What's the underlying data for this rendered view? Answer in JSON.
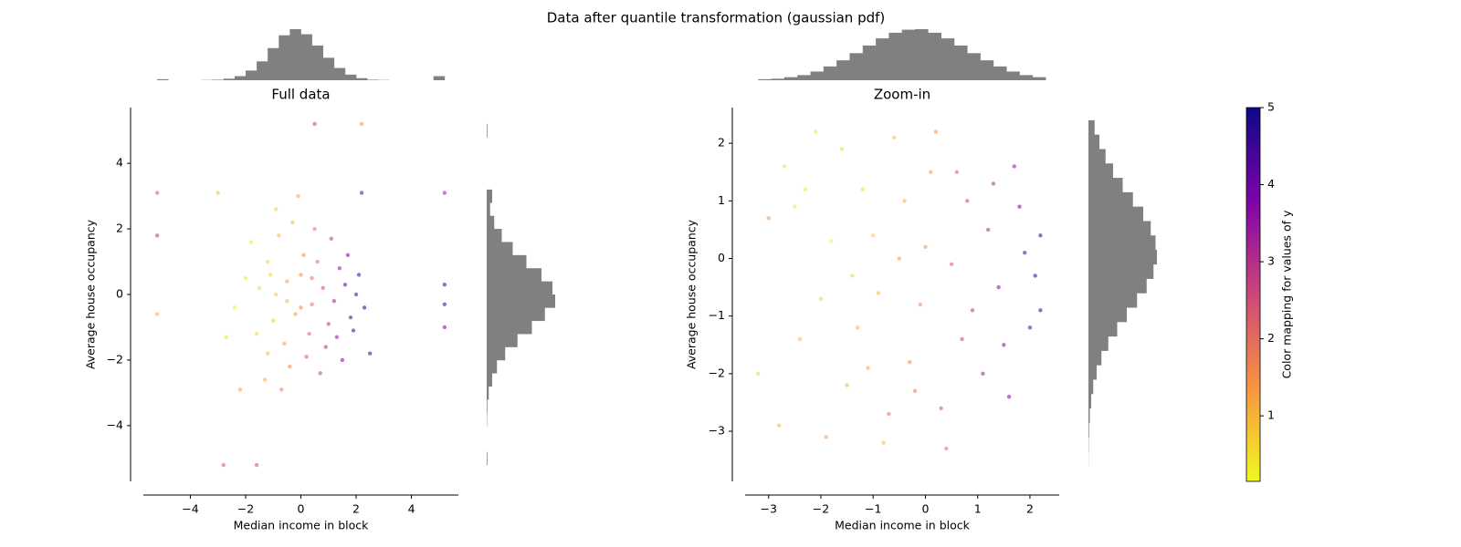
{
  "title": "Data after quantile transformation (gaussian pdf)",
  "chart_data": [
    {
      "type": "scatter",
      "title": "Full data",
      "xlabel": "Median income in block",
      "ylabel": "Average house occupancy",
      "xlim": [
        -5.7,
        5.7
      ],
      "ylim": [
        -5.7,
        5.7
      ],
      "xticks": [
        {
          "value": -4,
          "label": "−4"
        },
        {
          "value": -2,
          "label": "−2"
        },
        0,
        2,
        4
      ],
      "yticks": [
        {
          "value": -4,
          "label": "−4"
        },
        {
          "value": -2,
          "label": "−2"
        },
        0,
        2,
        4
      ],
      "x": [
        -1.2,
        -0.8,
        -0.5,
        -0.2,
        0.1,
        0.4,
        0.8,
        1.2,
        1.6,
        2.0,
        2.3,
        -1.5,
        -1.0,
        -0.6,
        -0.3,
        0.0,
        0.3,
        0.6,
        1.0,
        1.4,
        1.8,
        -2.0,
        -1.6,
        -1.2,
        -0.9,
        -0.4,
        0.2,
        0.5,
        0.9,
        1.3,
        1.7,
        2.1,
        -2.4,
        -1.8,
        -1.3,
        -0.7,
        -0.1,
        0.7,
        1.1,
        1.5,
        -0.5,
        -0.9,
        0.0,
        0.4,
        -1.1,
        1.9,
        2.5,
        -2.7,
        -3.0,
        -5.2,
        -5.2,
        -5.2,
        5.2,
        5.2,
        5.2,
        5.2,
        0.5,
        2.2,
        -2.8,
        -1.6,
        2.2,
        -2.2
      ],
      "y": [
        1.0,
        1.8,
        0.4,
        -0.6,
        1.2,
        -0.3,
        0.2,
        -0.2,
        0.3,
        0.0,
        -0.4,
        0.2,
        -0.8,
        -1.5,
        2.2,
        0.6,
        -1.2,
        1.0,
        -0.9,
        0.8,
        -0.7,
        0.5,
        -1.2,
        -1.8,
        2.6,
        -2.2,
        -1.9,
        2.0,
        -1.6,
        -1.3,
        1.2,
        0.6,
        -0.4,
        1.6,
        -2.6,
        -2.9,
        3.0,
        -2.4,
        1.7,
        -2.0,
        -0.2,
        0.0,
        -0.4,
        0.5,
        0.6,
        -1.1,
        -1.8,
        -1.3,
        3.1,
        3.1,
        1.8,
        -0.6,
        3.1,
        0.3,
        -0.3,
        -1.0,
        5.2,
        5.2,
        -5.2,
        -5.2,
        3.1,
        -2.9
      ],
      "c": [
        0.6,
        0.9,
        1.2,
        1.4,
        1.6,
        2.0,
        2.6,
        3.3,
        4.1,
        4.6,
        4.9,
        0.5,
        0.8,
        1.3,
        1.0,
        1.5,
        2.2,
        2.1,
        3.0,
        3.6,
        4.3,
        0.4,
        0.6,
        0.9,
        0.7,
        1.6,
        2.4,
        1.9,
        3.1,
        3.5,
        3.9,
        4.7,
        0.3,
        0.4,
        1.1,
        1.8,
        1.2,
        2.8,
        2.9,
        3.8,
        1.1,
        0.8,
        1.7,
        2.0,
        0.6,
        4.5,
        4.8,
        0.5,
        0.9,
        2.5,
        3.0,
        1.0,
        3.4,
        4.8,
        4.9,
        4.0,
        2.8,
        1.5,
        2.4,
        2.6,
        4.2,
        1.2
      ]
    },
    {
      "type": "histogram",
      "orientation": "vertical",
      "color": "#808080",
      "ylim": [
        0,
        100
      ],
      "bins": [
        -5.2,
        -4.8,
        -4.4,
        -4.0,
        -3.6,
        -3.2,
        -2.8,
        -2.4,
        -2.0,
        -1.6,
        -1.2,
        -0.8,
        -0.4,
        0.0,
        0.4,
        0.8,
        1.2,
        1.6,
        2.0,
        2.4,
        2.8,
        3.2,
        3.6,
        4.0,
        4.4,
        4.8,
        5.2
      ],
      "counts": [
        2,
        0,
        0,
        0,
        0.5,
        1,
        3,
        8,
        19,
        37,
        63,
        88,
        100,
        90,
        68,
        44,
        24,
        11,
        4,
        1,
        0.5,
        0,
        0,
        0,
        0,
        8
      ]
    },
    {
      "type": "histogram",
      "orientation": "horizontal",
      "color": "#808080",
      "xlim": [
        0,
        100
      ],
      "bins": [
        -5.2,
        -4.8,
        -4.4,
        -4.0,
        -3.6,
        -3.2,
        -2.8,
        -2.4,
        -2.0,
        -1.6,
        -1.2,
        -0.8,
        -0.4,
        0.0,
        0.4,
        0.8,
        1.2,
        1.6,
        2.0,
        2.4,
        2.8,
        3.2,
        3.6,
        4.0,
        4.4,
        4.8,
        5.2
      ],
      "counts": [
        1,
        0,
        0,
        0.5,
        1,
        3,
        8,
        15,
        27,
        45,
        66,
        85,
        100,
        96,
        80,
        58,
        38,
        22,
        11,
        5,
        8,
        0,
        0,
        0,
        0,
        1
      ]
    },
    {
      "type": "scatter",
      "title": "Zoom-in",
      "xlabel": "Median income in block",
      "ylabel": "Average house occupancy",
      "xlim": [
        -3.45,
        2.56
      ],
      "ylim": [
        -3.87,
        2.62
      ],
      "xticks": [
        {
          "value": -3,
          "label": "−3"
        },
        {
          "value": -2,
          "label": "−2"
        },
        {
          "value": -1,
          "label": "−1"
        },
        0,
        1,
        2
      ],
      "yticks": [
        {
          "value": -3,
          "label": "−3"
        },
        {
          "value": -2,
          "label": "−2"
        },
        {
          "value": -1,
          "label": "−1"
        },
        0,
        1,
        2
      ],
      "x": [
        -3.0,
        -2.7,
        -2.4,
        -2.1,
        -1.8,
        -1.5,
        -1.2,
        -0.9,
        -0.6,
        -0.3,
        0.0,
        0.3,
        0.6,
        0.9,
        1.2,
        1.5,
        1.8,
        2.1,
        2.2,
        -2.5,
        -2.0,
        -1.6,
        -1.3,
        -1.0,
        -0.7,
        -0.4,
        -0.1,
        0.2,
        0.5,
        0.8,
        1.1,
        1.4,
        1.7,
        2.0,
        -2.8,
        -1.9,
        -0.8,
        0.4,
        -3.2,
        -1.1,
        -0.5,
        0.1,
        0.7,
        1.3,
        1.9,
        2.2,
        -0.2,
        1.6,
        -2.3,
        -1.4
      ],
      "y": [
        0.7,
        1.6,
        -1.4,
        2.2,
        0.3,
        -2.2,
        1.2,
        -0.6,
        2.1,
        -1.8,
        0.2,
        -2.6,
        1.5,
        -0.9,
        0.5,
        -1.5,
        0.9,
        -0.3,
        0.4,
        0.9,
        -0.7,
        1.9,
        -1.2,
        0.4,
        -2.7,
        1.0,
        -0.8,
        2.2,
        -0.1,
        1.0,
        -2.0,
        -0.5,
        1.6,
        -1.2,
        -2.9,
        -3.1,
        -3.2,
        -3.3,
        -2.0,
        -1.9,
        0.0,
        1.5,
        -1.4,
        1.3,
        0.1,
        -0.9,
        -2.3,
        -2.4,
        1.2,
        -0.3
      ],
      "c": [
        1.5,
        0.5,
        0.9,
        0.4,
        0.3,
        1.1,
        0.5,
        0.9,
        0.8,
        1.6,
        1.4,
        2.5,
        2.2,
        3.0,
        3.2,
        3.9,
        4.0,
        4.7,
        4.9,
        0.4,
        0.6,
        0.5,
        1.0,
        0.7,
        1.9,
        1.0,
        1.6,
        1.5,
        2.2,
        2.6,
        3.4,
        3.7,
        3.6,
        4.6,
        1.0,
        1.3,
        0.9,
        2.0,
        0.6,
        1.2,
        1.3,
        1.4,
        2.7,
        3.1,
        4.4,
        4.8,
        1.8,
        3.7,
        0.4,
        0.6
      ]
    },
    {
      "type": "histogram",
      "orientation": "vertical",
      "color": "#808080",
      "ylim": [
        0,
        100
      ],
      "bins": [
        -3.2,
        -2.95,
        -2.7,
        -2.45,
        -2.2,
        -1.95,
        -1.7,
        -1.45,
        -1.2,
        -0.95,
        -0.7,
        -0.45,
        -0.2,
        0.05,
        0.3,
        0.55,
        0.8,
        1.05,
        1.3,
        1.55,
        1.8,
        2.05,
        2.3
      ],
      "counts": [
        2,
        3,
        6,
        10,
        17,
        27,
        39,
        53,
        68,
        82,
        93,
        99,
        100,
        93,
        82,
        68,
        53,
        39,
        27,
        17,
        10,
        6
      ]
    },
    {
      "type": "histogram",
      "orientation": "horizontal",
      "color": "#808080",
      "xlim": [
        0,
        100
      ],
      "bins": [
        -3.6,
        -3.35,
        -3.1,
        -2.85,
        -2.6,
        -2.35,
        -2.1,
        -1.85,
        -1.6,
        -1.35,
        -1.1,
        -0.85,
        -0.6,
        -0.35,
        -0.1,
        0.15,
        0.4,
        0.65,
        0.9,
        1.15,
        1.4,
        1.65,
        1.9,
        2.15,
        2.4
      ],
      "counts": [
        0.2,
        0.4,
        1,
        2,
        4,
        7,
        12,
        19,
        29,
        42,
        56,
        71,
        85,
        95,
        100,
        98,
        91,
        80,
        65,
        50,
        36,
        25,
        16,
        9
      ]
    },
    {
      "type": "colorbar",
      "label": "Color mapping for values of y",
      "ylim": [
        0.15,
        5
      ],
      "yticks": [
        1,
        2,
        3,
        4,
        5
      ],
      "colors": [
        "#f0f921",
        "#f89540",
        "#cc4778",
        "#7e03a8",
        "#0d0887"
      ]
    }
  ]
}
